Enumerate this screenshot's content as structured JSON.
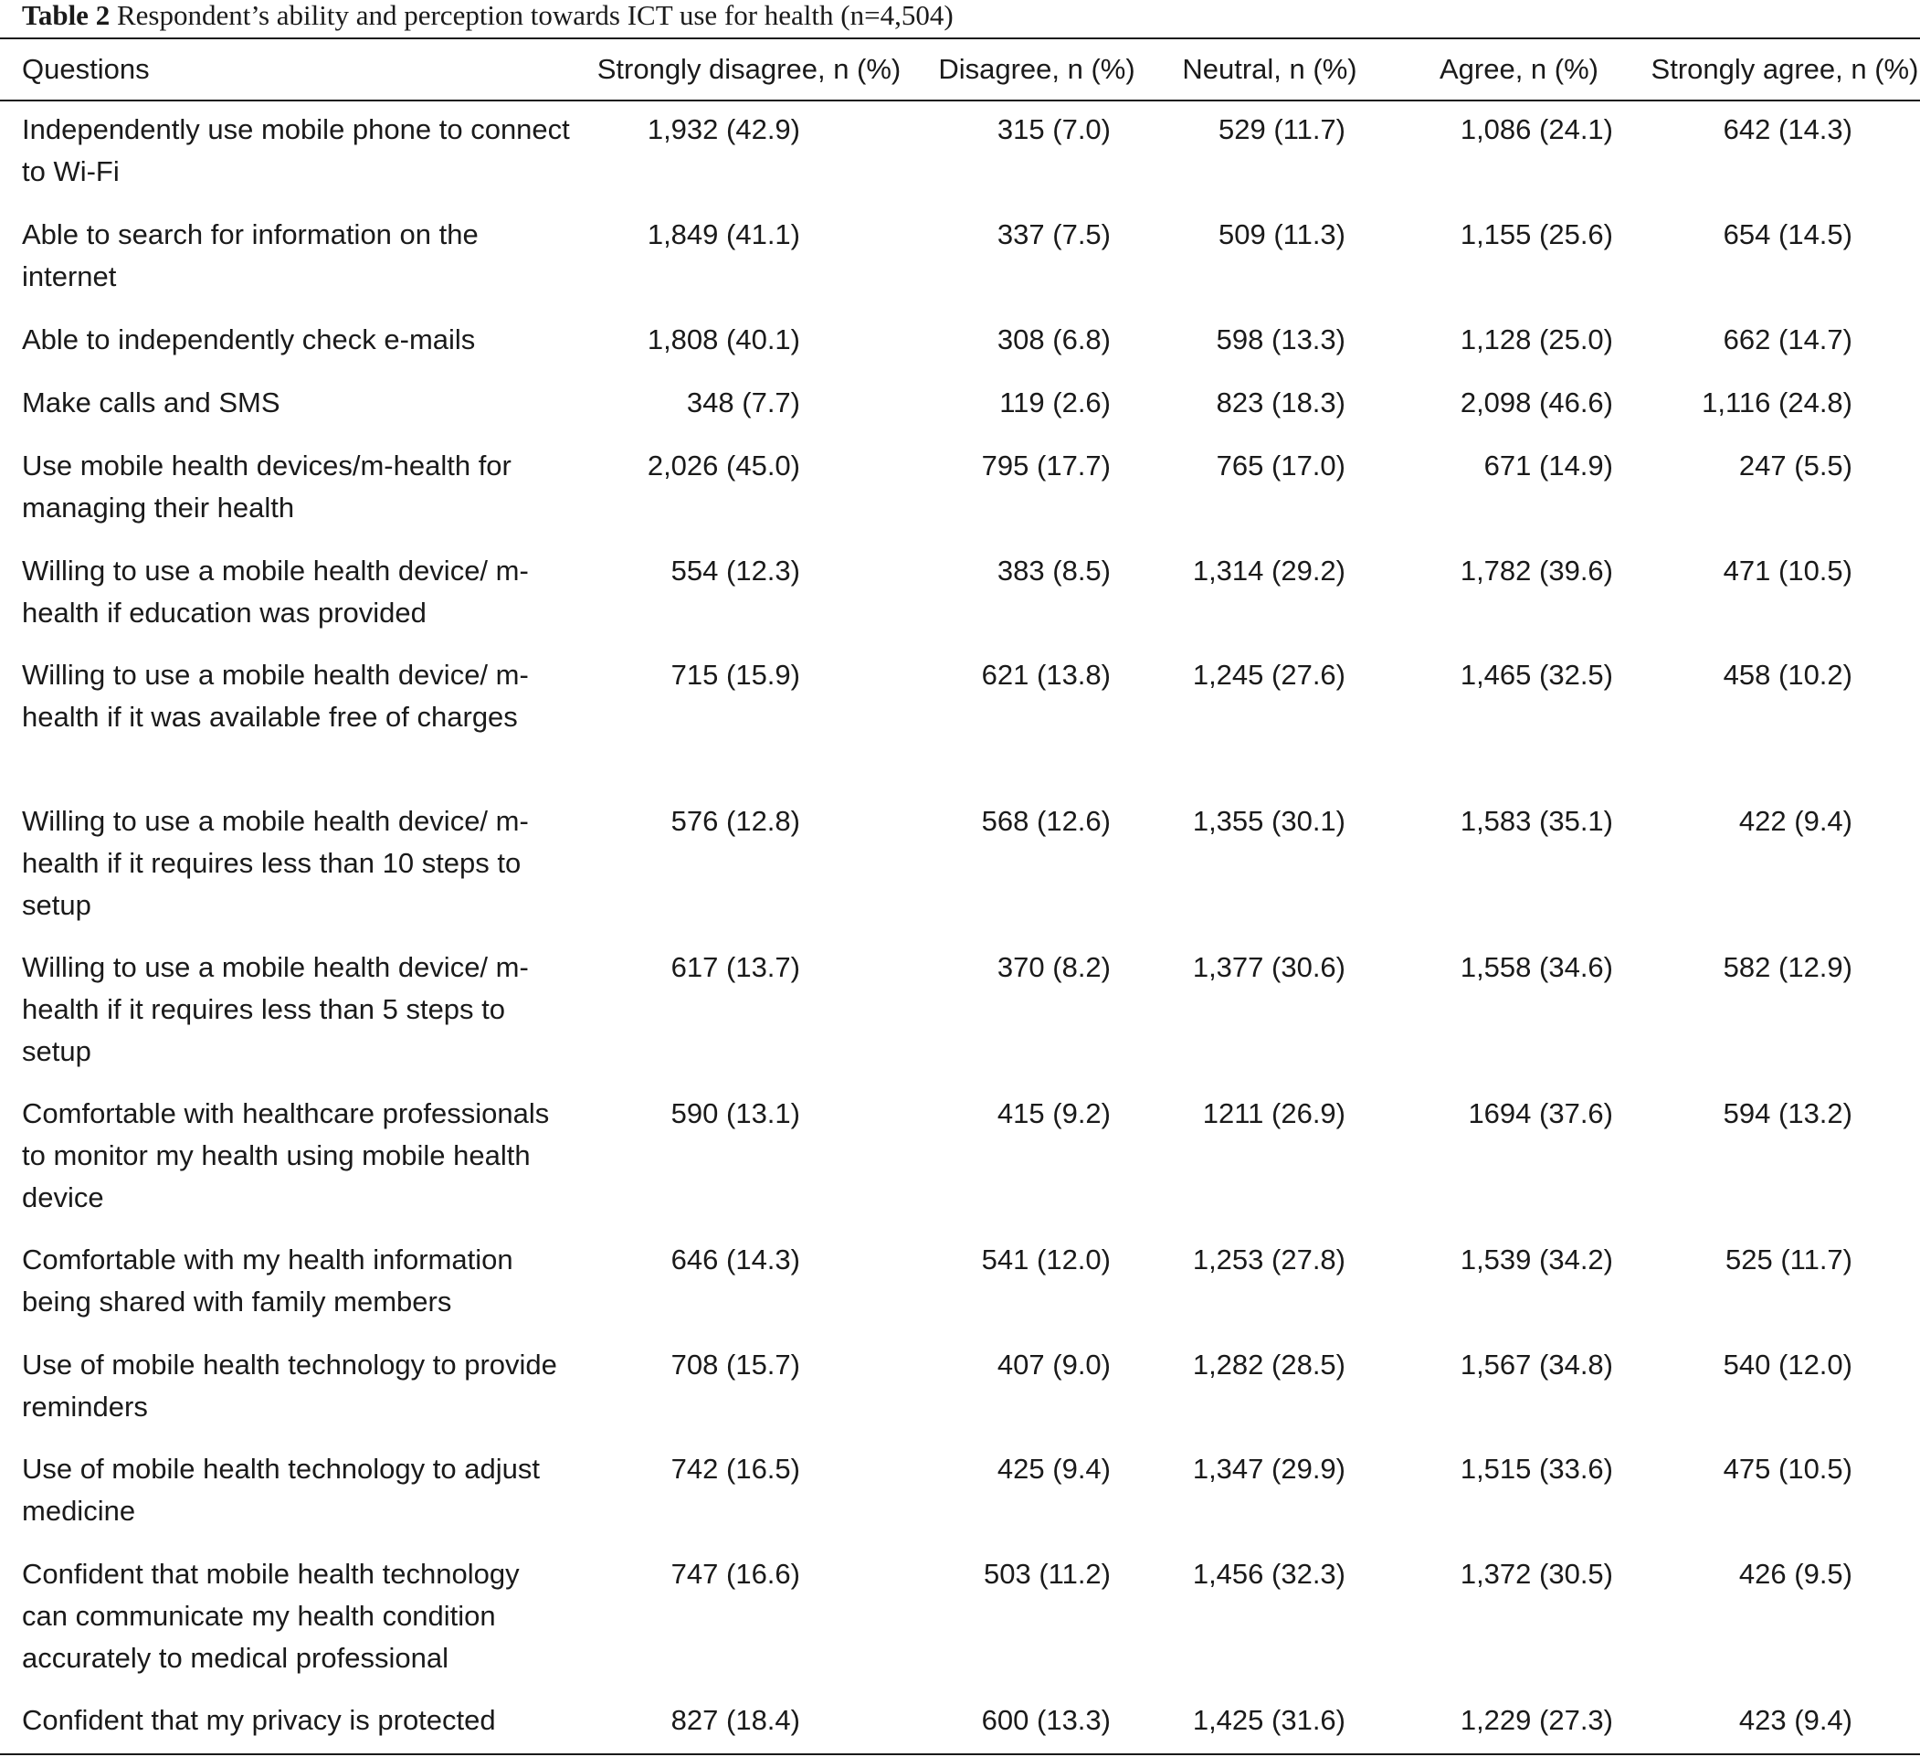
{
  "caption": {
    "label": "Table 2",
    "text": "Respondent’s ability and perception towards ICT use for health (n=4,504)"
  },
  "columns": [
    "Questions",
    "Strongly disagree, n (%)",
    "Disagree, n (%)",
    "Neutral, n (%)",
    "Agree, n (%)",
    "Strongly agree, n (%)"
  ],
  "rows": [
    {
      "question": "Independently use mobile phone to connect to Wi-Fi",
      "values": [
        "1,932 (42.9)",
        "315 (7.0)",
        "529 (11.7)",
        "1,086 (24.1)",
        "642 (14.3)"
      ]
    },
    {
      "question": "Able to search for information on the internet",
      "values": [
        "1,849 (41.1)",
        "337 (7.5)",
        "509 (11.3)",
        "1,155 (25.6)",
        "654 (14.5)"
      ]
    },
    {
      "question": "Able to independently check e-mails",
      "values": [
        "1,808 (40.1)",
        "308 (6.8)",
        "598 (13.3)",
        "1,128 (25.0)",
        "662 (14.7)"
      ]
    },
    {
      "question": "Make calls and SMS",
      "values": [
        "348 (7.7)",
        "119 (2.6)",
        "823 (18.3)",
        "2,098 (46.6)",
        "1,116 (24.8)"
      ]
    },
    {
      "question": "Use mobile health devices/m-health for managing their health",
      "values": [
        "2,026 (45.0)",
        "795 (17.7)",
        "765 (17.0)",
        "671 (14.9)",
        "247 (5.5)"
      ]
    },
    {
      "question": "Willing to use a mobile health device/ m-health if education was provided",
      "values": [
        "554 (12.3)",
        "383 (8.5)",
        "1,314 (29.2)",
        "1,782 (39.6)",
        "471 (10.5)"
      ]
    },
    {
      "question": "Willing to use a mobile health device/ m-health if it was available free of charges",
      "values": [
        "715 (15.9)",
        "621 (13.8)",
        "1,245 (27.6)",
        "1,465 (32.5)",
        "458 (10.2)"
      ]
    },
    {
      "question": "Willing to use a mobile health device/ m-health if it requires less than 10 steps to setup",
      "values": [
        "576 (12.8)",
        "568 (12.6)",
        "1,355 (30.1)",
        "1,583 (35.1)",
        "422 (9.4)"
      ]
    },
    {
      "question": "Willing to use a mobile health device/ m-health if it requires less than 5 steps to setup",
      "values": [
        "617 (13.7)",
        "370 (8.2)",
        "1,377 (30.6)",
        "1,558 (34.6)",
        "582 (12.9)"
      ]
    },
    {
      "question": "Comfortable with healthcare professionals to monitor my health using mobile health device",
      "values": [
        "590 (13.1)",
        "415 (9.2)",
        "1211 (26.9)",
        "1694 (37.6)",
        "594 (13.2)"
      ]
    },
    {
      "question": "Comfortable with my health information being shared with family members",
      "values": [
        "646 (14.3)",
        "541 (12.0)",
        "1,253 (27.8)",
        "1,539 (34.2)",
        "525 (11.7)"
      ]
    },
    {
      "question": "Use of mobile health technology to provide reminders",
      "values": [
        "708 (15.7)",
        "407 (9.0)",
        "1,282 (28.5)",
        "1,567 (34.8)",
        "540 (12.0)"
      ]
    },
    {
      "question": "Use of mobile health technology to adjust medicine",
      "values": [
        "742 (16.5)",
        "425 (9.4)",
        "1,347 (29.9)",
        "1,515 (33.6)",
        "475 (10.5)"
      ]
    },
    {
      "question": "Confident that mobile health technology can communicate my health condition accurately to medical professional",
      "values": [
        "747 (16.6)",
        "503 (11.2)",
        "1,456 (32.3)",
        "1,372 (30.5)",
        "426 (9.5)"
      ]
    },
    {
      "question": "Confident that my privacy is protected",
      "values": [
        "827 (18.4)",
        "600 (13.3)",
        "1,425 (31.6)",
        "1,229 (27.3)",
        "423 (9.4)"
      ]
    }
  ]
}
